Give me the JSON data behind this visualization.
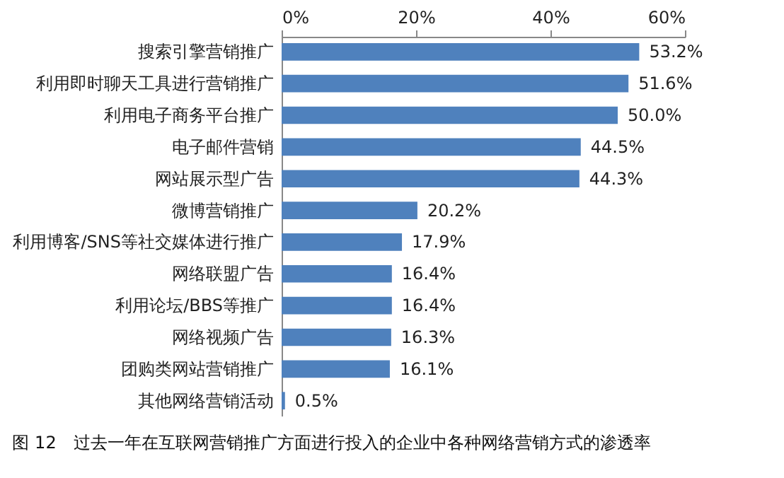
{
  "chart_data": {
    "type": "bar",
    "orientation": "horizontal",
    "categories": [
      "搜索引擎营销推广",
      "利用即时聊天工具进行营销推广",
      "利用电子商务平台推广",
      "电子邮件营销",
      "网站展示型广告",
      "微博营销推广",
      "利用博客/SNS等社交媒体进行推广",
      "网络联盟广告",
      "利用论坛/BBS等推广",
      "网络视频广告",
      "团购类网站营销推广",
      "其他网络营销活动"
    ],
    "values": [
      53.2,
      51.6,
      50.0,
      44.5,
      44.3,
      20.2,
      17.9,
      16.4,
      16.4,
      16.3,
      16.1,
      0.5
    ],
    "value_labels": [
      "53.2%",
      "51.6%",
      "50.0%",
      "44.5%",
      "44.3%",
      "20.2%",
      "17.9%",
      "16.4%",
      "16.4%",
      "16.3%",
      "16.1%",
      "0.5%"
    ],
    "color": "#4f81bd",
    "xlim": [
      0,
      60
    ],
    "xticks": [
      {
        "value": 0,
        "label": "0%"
      },
      {
        "value": 20,
        "label": "20%"
      },
      {
        "value": 40,
        "label": "40%"
      },
      {
        "value": 60,
        "label": "60%"
      }
    ],
    "grid": false,
    "annotations": [
      "图 12　过去一年在互联网营销推广方面进行投入的企业中各种网络营销方式的渗透率"
    ]
  }
}
